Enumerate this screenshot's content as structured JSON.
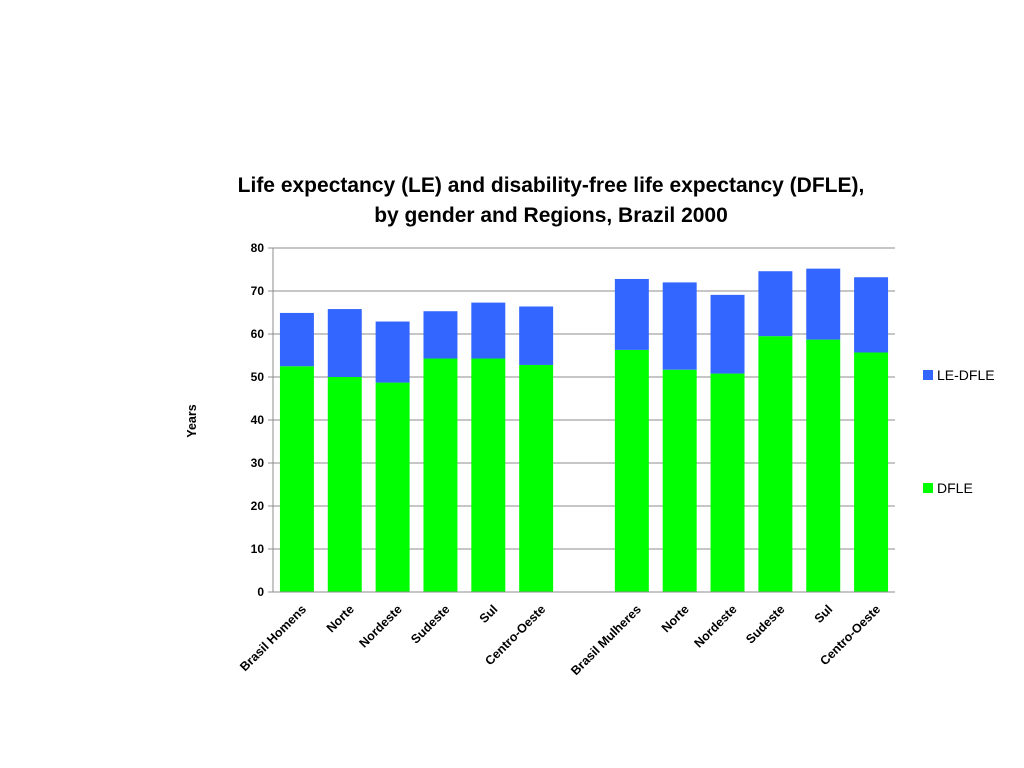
{
  "chart_data": {
    "type": "bar",
    "stacked": true,
    "title": "Life expectancy (LE) and disability-free life expectancy (DFLE), by gender and Regions, Brazil 2000",
    "title_lines": [
      "Life expectancy (LE) and disability-free life expectancy (DFLE),",
      "by gender and Regions, Brazil 2000"
    ],
    "xlabel": "",
    "ylabel": "Years",
    "ylim": [
      0,
      80
    ],
    "yticks": [
      0,
      10,
      20,
      30,
      40,
      50,
      60,
      70,
      80
    ],
    "grid": true,
    "legend_position": "right",
    "categories": [
      "Brasil  Homens",
      "Norte",
      "Nordeste",
      "Sudeste",
      "Sul",
      "Centro-Oeste",
      "",
      "Brasil  Mulheres",
      "Norte",
      "Nordeste",
      "Sudeste",
      "Sul",
      "Centro-Oeste"
    ],
    "series": [
      {
        "name": "DFLE",
        "color": "#00ff00",
        "values": [
          52.5,
          50.0,
          48.7,
          54.3,
          54.3,
          52.8,
          null,
          56.3,
          51.7,
          50.8,
          59.5,
          58.7,
          55.7
        ]
      },
      {
        "name": "LE-DFLE",
        "color": "#3366ff",
        "values": [
          12.4,
          15.8,
          14.2,
          11.0,
          13.0,
          13.6,
          null,
          16.5,
          20.3,
          18.3,
          15.1,
          16.5,
          17.5
        ]
      }
    ],
    "legend_order": [
      "LE-DFLE",
      "DFLE"
    ]
  }
}
